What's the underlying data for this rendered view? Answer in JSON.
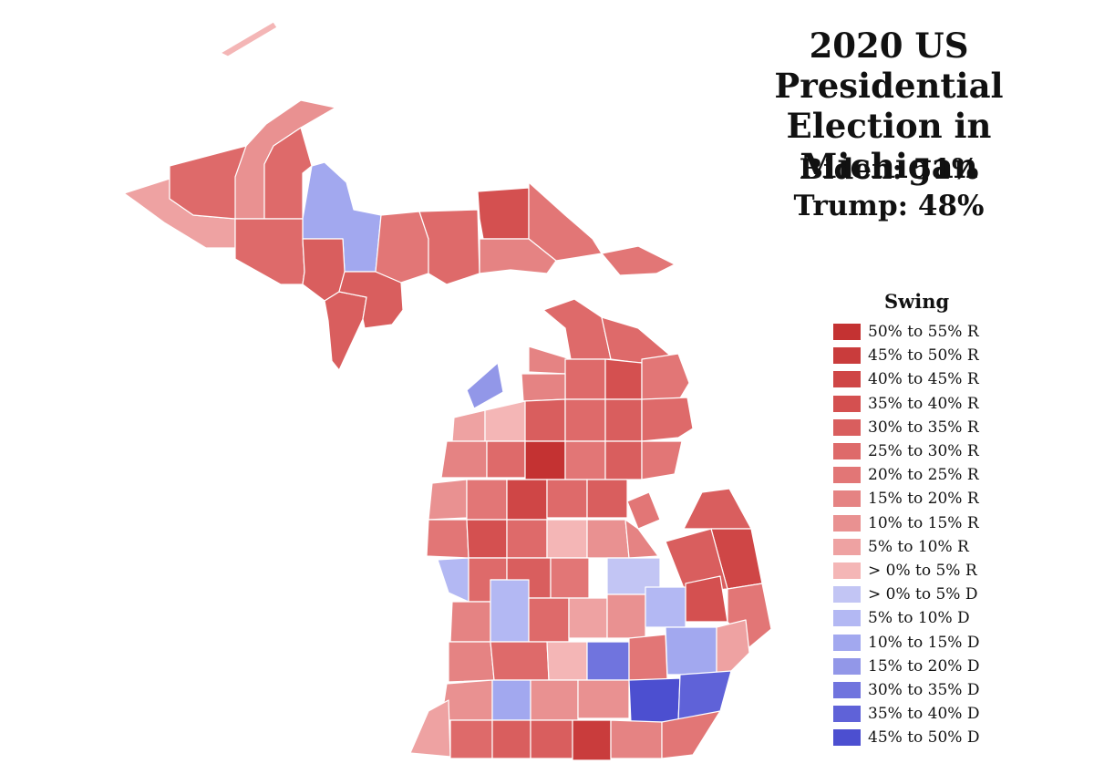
{
  "title_lines": [
    "2020 US Presidential",
    "Election in Michigan"
  ],
  "results": {
    "biden": "Biden: 51%",
    "trump": "Trump: 48%"
  },
  "legend": {
    "title": "Swing",
    "items": [
      {
        "label": "50% to 55% R",
        "color": "#c43232"
      },
      {
        "label": "45% to 50% R",
        "color": "#c93c3c"
      },
      {
        "label": "40% to 45% R",
        "color": "#cf4646"
      },
      {
        "label": "35% to 40% R",
        "color": "#d45050"
      },
      {
        "label": "30% to 35% R",
        "color": "#d95e5e"
      },
      {
        "label": "25% to 30% R",
        "color": "#de6a6a"
      },
      {
        "label": "20% to 25% R",
        "color": "#e27676"
      },
      {
        "label": "15% to 20% R",
        "color": "#e58383"
      },
      {
        "label": "10% to 15% R",
        "color": "#e99191"
      },
      {
        "label": "5% to 10% R",
        "color": "#eea2a2"
      },
      {
        "label": "> 0% to 5% R",
        "color": "#f4b6b6"
      },
      {
        "label": "> 0% to 5% D",
        "color": "#c2c5f4"
      },
      {
        "label": "5% to 10% D",
        "color": "#b3b8f3"
      },
      {
        "label": "10% to 15% D",
        "color": "#a2a8ef"
      },
      {
        "label": "15% to 20% D",
        "color": "#9297e8"
      },
      {
        "label": "30% to 35% D",
        "color": "#7074de"
      },
      {
        "label": "35% to 40% D",
        "color": "#5f62d8"
      },
      {
        "label": "45% to 50% D",
        "color": "#4c4fd0"
      }
    ]
  }
}
